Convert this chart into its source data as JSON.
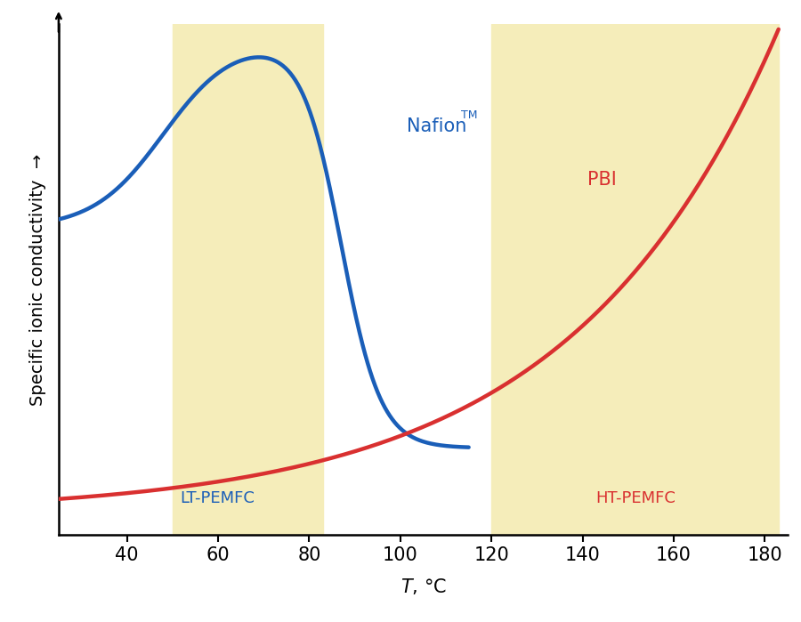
{
  "title": "",
  "xlabel": "$T$, °C",
  "ylabel": "Specific ionic conductivity  →",
  "xlim": [
    25,
    185
  ],
  "ylim": [
    0,
    1
  ],
  "xticks": [
    40,
    60,
    80,
    100,
    120,
    140,
    160,
    180
  ],
  "background_color": "#ffffff",
  "yellow_region1": [
    50,
    83
  ],
  "yellow_region2": [
    120,
    183
  ],
  "yellow_color": "#f5edba",
  "nafion_color": "#1a5eb8",
  "pbi_color": "#d93030",
  "nafion_label": "Nafion",
  "nafion_superscript": "TM",
  "pbi_label": "PBI",
  "lt_label": "LT-PEMFC",
  "ht_label": "HT-PEMFC",
  "lt_label_color": "#1a5eb8",
  "ht_label_color": "#d93030",
  "line_width": 3.2
}
